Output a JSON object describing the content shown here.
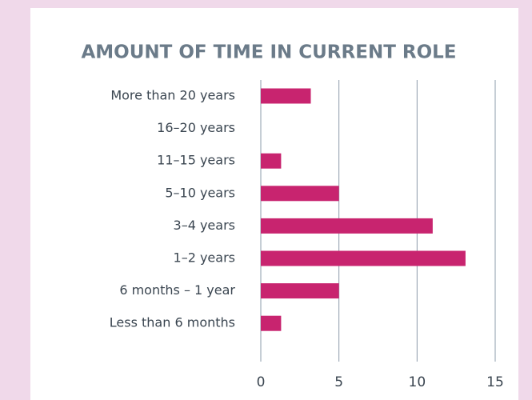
{
  "chart_data": {
    "type": "barh",
    "title": "AMOUNT OF TIME IN CURRENT ROLE",
    "categories": [
      "More than 20 years",
      "16–20 years",
      "11–15 years",
      "5–10 years",
      "3–4 years",
      "1–2 years",
      "6 months – 1 year",
      "Less than 6 months"
    ],
    "values": [
      3.2,
      0,
      1.3,
      5,
      11,
      13.1,
      5,
      1.3
    ],
    "color": "#c8246f",
    "xlim": [
      0,
      15
    ],
    "xticks": [
      0,
      5,
      10,
      15
    ],
    "grid": true
  }
}
